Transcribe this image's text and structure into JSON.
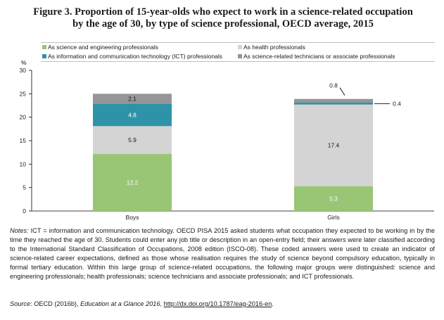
{
  "figure": {
    "label": "Figure 3.",
    "title_line1": "Proportion of 15-year-olds who expect to work in a science-related occupation",
    "title_line2": "by the age of 30, by type of science professional, OECD average, 2015"
  },
  "notes": {
    "label": "Notes:",
    "text": "ICT = information and communication technology. OECD PISA 2015 asked students what occupation they expected to be working in by the time they reached the age of 30. Students could enter any job title or description in an open-entry field; their answers were later classified according to the International Standard Classification of Occupations, 2008 edition (ISCO-08). These coded answers were used to create an indicator of science-related career expectations, defined as those whose realisation requires the study of science beyond compulsory education, typically in formal tertiary education. Within this large group of science-related occupations, the following major groups were distinguished: science and engineering professionals; health professionals; science technicians and associate professionals; and ICT professionals."
  },
  "source": {
    "label": "Source",
    "prefix": ": OECD (2016b), ",
    "title": "Education at a Glance 2016",
    "comma": ", ",
    "link": "http://dx.doi.org/10.1787/eag-2016-en",
    "end": "."
  },
  "colors": {
    "science_engineering": "#98c675",
    "health": "#d4d4d4",
    "ict": "#2e92a8",
    "technicians": "#969696",
    "label_light": "#ffffff",
    "label_dark": "#1a1a1a"
  },
  "chart_data": {
    "type": "bar",
    "stacked": true,
    "ylabel": "%",
    "ylim": [
      0,
      30
    ],
    "yticks": [
      "0",
      "5",
      "10",
      "15",
      "20",
      "25",
      "30"
    ],
    "categories": [
      "Boys",
      "Girls"
    ],
    "series": [
      {
        "key": "science_engineering",
        "name": "As science and engineering professionals",
        "values": [
          12.2,
          5.3
        ],
        "labels": [
          "12.2",
          "5.3"
        ]
      },
      {
        "key": "health",
        "name": "As health professionals",
        "values": [
          5.9,
          17.4
        ],
        "labels": [
          "5.9",
          "17.4"
        ]
      },
      {
        "key": "ict",
        "name": "As information and communication technology (ICT) professionals",
        "values": [
          4.8,
          0.4
        ],
        "labels": [
          "4.8",
          "0.4"
        ]
      },
      {
        "key": "technicians",
        "name": "As science-related technicians or associate professionals",
        "values": [
          2.1,
          0.8
        ],
        "labels": [
          "2.1",
          "0.8"
        ]
      }
    ]
  }
}
